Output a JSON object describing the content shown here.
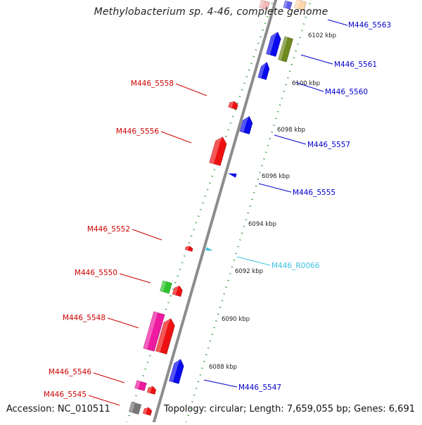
{
  "title": "Methylobacterium sp. 4-46, complete genome",
  "footer": {
    "accession": "Accession: NC_010511",
    "topology": "Topology: circular; Length: 7,659,055 bp; Genes: 6,691"
  },
  "colors": {
    "backbone": "#8c8c8c",
    "ring_ticks": "#1e8a1e",
    "forward_label": "#0000cc",
    "reverse_label": "#cc0000",
    "rna_label": "#3cc0e0"
  },
  "scale_labels": [
    "6088 kbp",
    "6090 kbp",
    "6092 kbp",
    "6094 kbp",
    "6096 kbp",
    "6098 kbp",
    "6100 kbp",
    "6102 kbp"
  ],
  "gene_labels": [
    {
      "id": "M446_5563",
      "strand": "forward",
      "color": "#0000cc"
    },
    {
      "id": "M446_5561",
      "strand": "forward",
      "color": "#0000cc"
    },
    {
      "id": "M446_5560",
      "strand": "forward",
      "color": "#0000cc"
    },
    {
      "id": "M446_5558",
      "strand": "reverse",
      "color": "#cc0000"
    },
    {
      "id": "M446_5557",
      "strand": "forward",
      "color": "#0000cc"
    },
    {
      "id": "M446_5556",
      "strand": "reverse",
      "color": "#cc0000"
    },
    {
      "id": "M446_5555",
      "strand": "forward",
      "color": "#0000cc"
    },
    {
      "id": "M446_5552",
      "strand": "reverse",
      "color": "#cc0000"
    },
    {
      "id": "M446_R0066",
      "strand": "forward",
      "color": "#3cc0e0"
    },
    {
      "id": "M446_5550",
      "strand": "reverse",
      "color": "#cc0000"
    },
    {
      "id": "M446_5548",
      "strand": "reverse",
      "color": "#cc0000"
    },
    {
      "id": "M446_5547",
      "strand": "forward",
      "color": "#0000cc"
    },
    {
      "id": "M446_5546",
      "strand": "reverse",
      "color": "#cc0000"
    },
    {
      "id": "M446_5545",
      "strand": "reverse",
      "color": "#cc0000"
    }
  ],
  "features": [
    {
      "name": "gene-m446-5563",
      "color": "#6060ee"
    },
    {
      "name": "gene-m446-5562",
      "color": "#ffd8b0"
    },
    {
      "name": "gene-m446-5564",
      "color": "#f4b8b8"
    },
    {
      "name": "gene-m446-5561",
      "color": "#0a0aee"
    },
    {
      "name": "gene-m446-5561-cog",
      "color": "#6f8a1f"
    },
    {
      "name": "gene-m446-5560",
      "color": "#0a0aee"
    },
    {
      "name": "gene-m446-5558",
      "color": "#ee1111"
    },
    {
      "name": "gene-m446-5557",
      "color": "#0a0aee"
    },
    {
      "name": "gene-m446-5556",
      "color": "#ee1111"
    },
    {
      "name": "gene-m446-5555",
      "color": "#0a0aee"
    },
    {
      "name": "gene-m446-5552",
      "color": "#ee1111"
    },
    {
      "name": "gene-m446-r0066",
      "color": "#3cc0e0"
    },
    {
      "name": "gene-m446-5550-cog",
      "color": "#2ec42e"
    },
    {
      "name": "gene-m446-5550",
      "color": "#ee1111"
    },
    {
      "name": "gene-m446-5548-cog",
      "color": "#ee1aa0"
    },
    {
      "name": "gene-m446-5548",
      "color": "#ee1111"
    },
    {
      "name": "gene-m446-5547",
      "color": "#0a0aee"
    },
    {
      "name": "gene-m446-5546-cog",
      "color": "#ee1aa0"
    },
    {
      "name": "gene-m446-5546",
      "color": "#ee1111"
    },
    {
      "name": "gene-m446-5545-cog",
      "color": "#777777"
    },
    {
      "name": "gene-m446-5545",
      "color": "#ee1111"
    }
  ]
}
